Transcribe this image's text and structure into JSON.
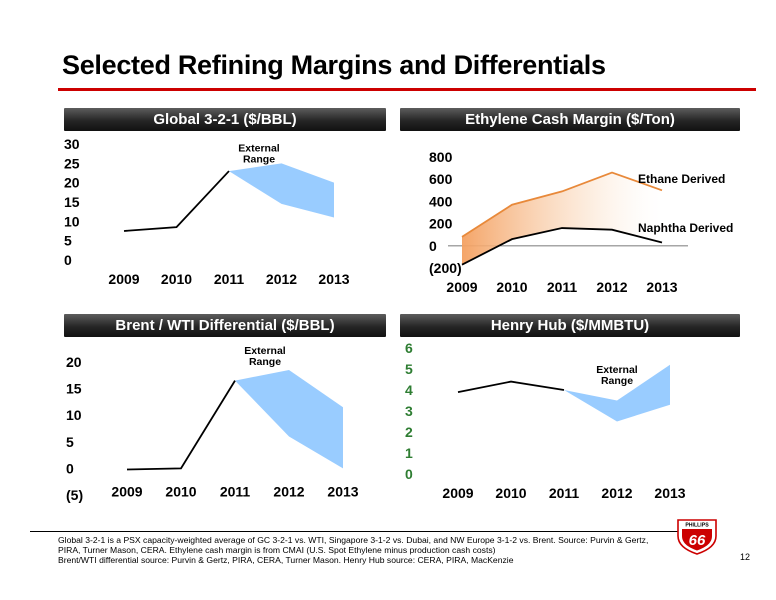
{
  "title": "Selected Refining Margins and Differentials",
  "footnote": [
    "Global 3-2-1 is a PSX capacity-weighted average of GC 3-2-1 vs. WTI, Singapore 3-1-2 vs. Dubai, and NW Europe 3-1-2 vs. Brent.  Source:  Purvin & Gertz,",
    "PIRA, Turner Mason, CERA.  Ethylene cash margin is from CMAI (U.S. Spot Ethylene minus production cash costs)",
    "Brent/WTI differential source:  Purvin & Gertz, PIRA, CERA, Turner Mason.  Henry Hub source: CERA, PIRA, MacKenzie"
  ],
  "page_number": "12",
  "logo": {
    "top_text": "PHILLIPS",
    "number": "66",
    "color": "#cc0000"
  },
  "colors": {
    "accent_red": "#cc0000",
    "range_blue": "#99ccff",
    "ethane_orange": "#e8893a",
    "tick_green": "#2e7d32"
  },
  "chart_data": [
    {
      "type": "line",
      "title": "Global 3-2-1 ($/BBL)",
      "categories": [
        "2009",
        "2010",
        "2011",
        "2012",
        "2013"
      ],
      "ylim": [
        0,
        30
      ],
      "yticks": [
        0,
        5,
        10,
        15,
        20,
        25,
        30
      ],
      "ytick_labels": [
        "0",
        "5",
        "10",
        "15",
        "20",
        "25",
        "30"
      ],
      "series": [
        {
          "values": [
            7.5,
            8.5,
            23,
            null,
            null
          ]
        }
      ],
      "range": {
        "x": [
          "2011",
          "2012",
          "2013"
        ],
        "low": [
          23,
          14.5,
          11
        ],
        "high": [
          23,
          25,
          20
        ]
      },
      "annotation": {
        "text": [
          "External",
          "Range"
        ],
        "x": "2011",
        "y": 28
      }
    },
    {
      "type": "line",
      "title": "Ethylene Cash Margin ($/Ton)",
      "categories": [
        "2009",
        "2010",
        "2011",
        "2012",
        "2013"
      ],
      "ylim": [
        -200,
        800
      ],
      "yticks": [
        -200,
        0,
        200,
        400,
        600,
        800
      ],
      "ytick_labels": [
        "(200)",
        "0",
        "200",
        "400",
        "600",
        "800"
      ],
      "series": [
        {
          "name": "Ethane Derived",
          "values": [
            80,
            370,
            490,
            660,
            500
          ]
        },
        {
          "name": "Naphtha Derived",
          "values": [
            -170,
            60,
            160,
            145,
            30
          ]
        }
      ]
    },
    {
      "type": "line",
      "title": "Brent / WTI Differential ($/BBL)",
      "categories": [
        "2009",
        "2010",
        "2011",
        "2012",
        "2013"
      ],
      "ylim": [
        -5,
        20
      ],
      "yticks": [
        -5,
        0,
        5,
        10,
        15,
        20
      ],
      "ytick_labels": [
        "(5)",
        "0",
        "5",
        "10",
        "15",
        "20"
      ],
      "series": [
        {
          "values": [
            -0.2,
            0,
            16.5,
            null,
            null
          ]
        }
      ],
      "range": {
        "x": [
          "2011",
          "2012",
          "2013"
        ],
        "low": [
          16.5,
          6,
          0
        ],
        "high": [
          16.5,
          18.5,
          11.5
        ]
      },
      "annotation": {
        "text": [
          "External",
          "Range"
        ],
        "x": "2011",
        "y": 21.5
      }
    },
    {
      "type": "line",
      "title": "Henry Hub ($/MMBTU)",
      "categories": [
        "2009",
        "2010",
        "2011",
        "2012",
        "2013"
      ],
      "ylim": [
        0,
        6
      ],
      "yticks": [
        0,
        1,
        2,
        3,
        4,
        5,
        6
      ],
      "ytick_labels": [
        "0",
        "1",
        "2",
        "3",
        "4",
        "5",
        "6"
      ],
      "series": [
        {
          "values": [
            3.9,
            4.4,
            4.0,
            null,
            null
          ]
        }
      ],
      "range": {
        "x": [
          "2011",
          "2012",
          "2013"
        ],
        "low": [
          4.0,
          2.5,
          3.3
        ],
        "high": [
          4.0,
          3.5,
          5.2
        ]
      },
      "annotation": {
        "text": [
          "External",
          "Range"
        ],
        "x": "2012",
        "y": 4.8
      }
    }
  ]
}
